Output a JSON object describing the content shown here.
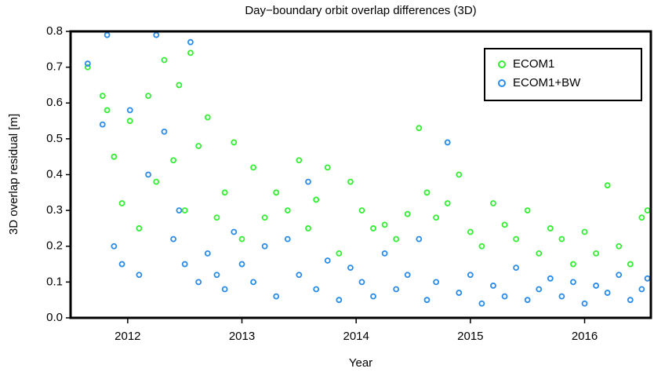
{
  "chart_data": {
    "type": "scatter",
    "title": "Day−boundary orbit overlap differences (3D)",
    "x_label": "Year",
    "y_label": "3D overlap residual [m]",
    "x": [
      2011.65,
      2011.78,
      2011.82,
      2011.88,
      2011.95,
      2012.02,
      2012.1,
      2012.18,
      2012.25,
      2012.32,
      2012.4,
      2012.45,
      2012.5,
      2012.55,
      2012.62,
      2012.7,
      2012.78,
      2012.85,
      2012.93,
      2013.0,
      2013.1,
      2013.2,
      2013.3,
      2013.4,
      2013.5,
      2013.58,
      2013.65,
      2013.75,
      2013.85,
      2013.95,
      2014.05,
      2014.15,
      2014.25,
      2014.35,
      2014.45,
      2014.55,
      2014.62,
      2014.7,
      2014.8,
      2014.9,
      2015.0,
      2015.1,
      2015.2,
      2015.3,
      2015.4,
      2015.5,
      2015.6,
      2015.7,
      2015.8,
      2015.9,
      2016.0,
      2016.1,
      2016.2,
      2016.3,
      2016.4,
      2016.5,
      2016.55
    ],
    "series": [
      {
        "name": "ECOM1",
        "color": "#33ee33",
        "values": [
          0.7,
          0.62,
          0.58,
          0.45,
          0.32,
          0.55,
          0.25,
          0.62,
          0.38,
          0.72,
          0.44,
          0.65,
          0.3,
          0.74,
          0.48,
          0.56,
          0.28,
          0.35,
          0.49,
          0.22,
          0.42,
          0.28,
          0.35,
          0.3,
          0.44,
          0.25,
          0.33,
          0.42,
          0.18,
          0.38,
          0.3,
          0.25,
          0.26,
          0.22,
          0.29,
          0.53,
          0.35,
          0.28,
          0.32,
          0.4,
          0.24,
          0.2,
          0.32,
          0.26,
          0.22,
          0.3,
          0.18,
          0.25,
          0.22,
          0.15,
          0.24,
          0.18,
          0.37,
          0.2,
          0.15,
          0.28,
          0.3
        ]
      },
      {
        "name": "ECOM1+BW",
        "color": "#2a8be8",
        "values": [
          0.71,
          0.54,
          0.79,
          0.2,
          0.15,
          0.58,
          0.12,
          0.4,
          0.79,
          0.52,
          0.22,
          0.3,
          0.15,
          0.77,
          0.1,
          0.18,
          0.12,
          0.08,
          0.24,
          0.15,
          0.1,
          0.2,
          0.06,
          0.22,
          0.12,
          0.38,
          0.08,
          0.16,
          0.05,
          0.14,
          0.1,
          0.06,
          0.18,
          0.08,
          0.12,
          0.22,
          0.05,
          0.1,
          0.49,
          0.07,
          0.12,
          0.04,
          0.09,
          0.06,
          0.14,
          0.05,
          0.08,
          0.11,
          0.06,
          0.1,
          0.04,
          0.09,
          0.07,
          0.12,
          0.05,
          0.08,
          0.11
        ]
      }
    ],
    "xlim": [
      2011.5,
      2016.58
    ],
    "xticks": [
      2012,
      2013,
      2014,
      2015,
      2016
    ],
    "ylim": [
      0,
      0.8
    ],
    "yticks": [
      {
        "value": 0,
        "label": "0.0"
      },
      0.1,
      0.2,
      0.3,
      0.4,
      0.5,
      0.6,
      0.7,
      0.8
    ],
    "grid": false,
    "legend": "upper right"
  }
}
